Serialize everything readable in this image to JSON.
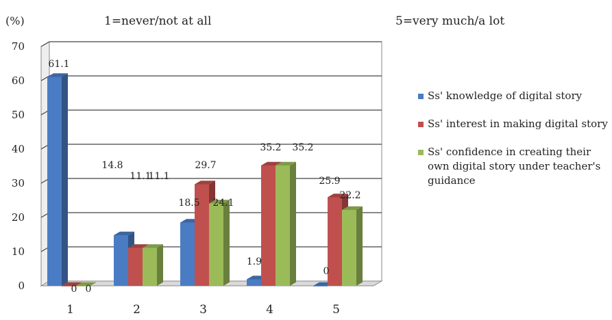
{
  "chart_data": {
    "type": "bar",
    "ylabel": "(%)",
    "note_left": "1=never/not at all",
    "note_right": "5=very much/a lot",
    "categories": [
      "1",
      "2",
      "3",
      "4",
      "5"
    ],
    "ylim": [
      0,
      70
    ],
    "yticks": [
      "0",
      "10",
      "20",
      "30",
      "40",
      "50",
      "60",
      "70"
    ],
    "grid": true,
    "legend_position": "right",
    "series": [
      {
        "name": "Ss' knowledge of digital story",
        "values": [
          61.1,
          14.8,
          18.5,
          1.9,
          0
        ],
        "labels": [
          "61.1",
          "14.8",
          "18.5",
          "1.9",
          "0"
        ],
        "color": "#4a7cc4"
      },
      {
        "name": "Ss' interest in making digital story",
        "values": [
          0,
          11.1,
          29.7,
          35.2,
          25.9
        ],
        "labels": [
          "0",
          "11.1",
          "29.7",
          "35.2",
          "25.9"
        ],
        "color": "#c0504d"
      },
      {
        "name": "Ss' confidence in creating their own digital story under teacher's guidance",
        "values": [
          0,
          11.1,
          24.1,
          35.2,
          22.2
        ],
        "labels": [
          "0",
          "11.1",
          "24.1",
          "35.2",
          "22.2"
        ],
        "color": "#9bbb59"
      }
    ]
  }
}
